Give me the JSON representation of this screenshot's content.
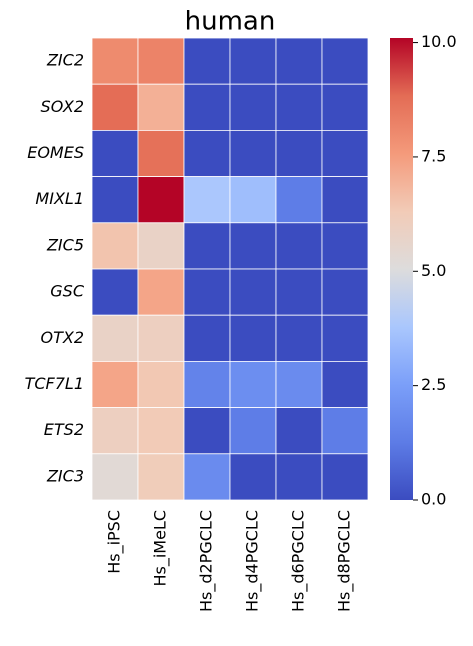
{
  "chart_data": {
    "type": "heatmap",
    "title": "human",
    "x_categories": [
      "Hs_iPSC",
      "Hs_iMeLC",
      "Hs_d2PGCLC",
      "Hs_d4PGCLC",
      "Hs_d6PGCLC",
      "Hs_d8PGCLC"
    ],
    "y_categories": [
      "ZIC2",
      "SOX2",
      "EOMES",
      "MIXL1",
      "ZIC5",
      "GSC",
      "OTX2",
      "TCF7L1",
      "ETS2",
      "ZIC3"
    ],
    "values": [
      [
        8.0,
        8.2,
        0,
        0,
        0,
        0
      ],
      [
        8.8,
        7.0,
        0,
        0,
        0,
        0
      ],
      [
        0,
        8.7,
        0,
        0,
        0,
        0
      ],
      [
        0,
        10.1,
        3.8,
        3.5,
        1.3,
        0
      ],
      [
        6.5,
        5.8,
        0,
        0,
        0,
        0
      ],
      [
        0,
        7.3,
        0,
        0,
        0,
        0
      ],
      [
        5.8,
        6.0,
        0,
        0,
        0,
        0
      ],
      [
        7.3,
        6.4,
        1.5,
        1.9,
        1.8,
        0
      ],
      [
        6.0,
        6.3,
        0,
        1.3,
        0,
        1.3
      ],
      [
        5.3,
        6.2,
        1.8,
        0,
        0,
        0
      ]
    ],
    "colormap": "coolwarm",
    "zlim": [
      0,
      10.1
    ],
    "zticks": [
      {
        "value": 0,
        "label": "0.0"
      },
      2.5,
      {
        "value": 5,
        "label": "5.0"
      },
      7.5,
      {
        "value": 10,
        "label": "10.0"
      }
    ]
  }
}
